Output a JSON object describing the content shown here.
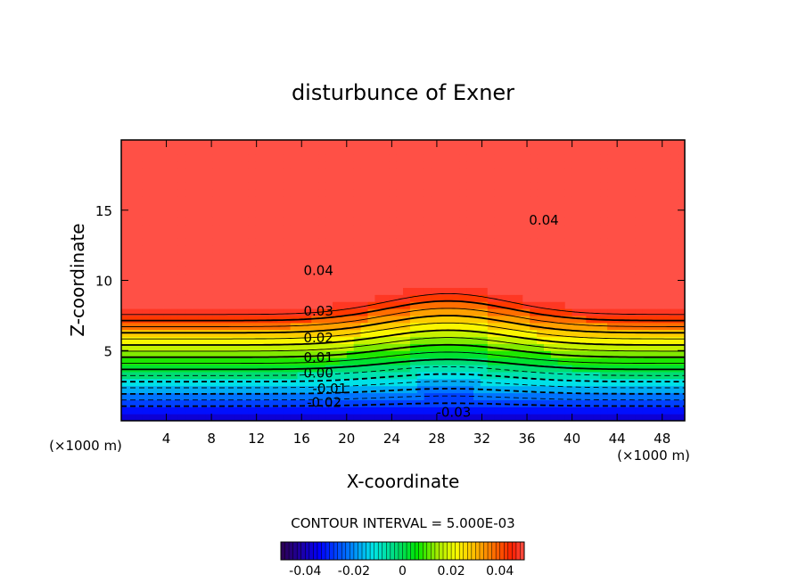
{
  "chart_data": {
    "type": "heatmap",
    "subtype": "filled-contour",
    "title": "disturbunce of Exner",
    "xlabel": "X-coordinate",
    "ylabel": "Z-coordinate",
    "x_unit": "(×1000 m)",
    "y_unit": "(×1000 m)",
    "xlim": [
      0,
      50
    ],
    "ylim": [
      0,
      20
    ],
    "x_ticks": [
      4,
      8,
      12,
      16,
      20,
      24,
      28,
      32,
      36,
      40,
      44,
      48
    ],
    "y_ticks": [
      5,
      10,
      15
    ],
    "contour_interval_text": "CONTOUR INTERVAL = 5.000E-03",
    "contour_interval": 0.005,
    "contour_levels": [
      -0.03,
      -0.025,
      -0.02,
      -0.015,
      -0.01,
      -0.005,
      0.0,
      0.005,
      0.01,
      0.015,
      0.02,
      0.025,
      0.03,
      0.035,
      0.04,
      0.045
    ],
    "negative_contours_dashed": true,
    "contour_labels": [
      {
        "text": "0.04",
        "x": 17.5,
        "z": 10.7
      },
      {
        "text": "0.04",
        "x": 37.5,
        "z": 14.3
      },
      {
        "text": "0.03",
        "x": 17.5,
        "z": 7.8
      },
      {
        "text": "0.02",
        "x": 17.5,
        "z": 5.9
      },
      {
        "text": "0.01",
        "x": 17.5,
        "z": 4.5
      },
      {
        "text": "0.00",
        "x": 17.5,
        "z": 3.4
      },
      {
        "text": "-0.01",
        "x": 18.5,
        "z": 2.3
      },
      {
        "text": "-0.02",
        "x": 18.0,
        "z": 1.3
      },
      {
        "text": "-0.03",
        "x": 29.5,
        "z": 0.6
      }
    ],
    "colorbar": {
      "min": -0.05,
      "max": 0.05,
      "ticks": [
        -0.04,
        -0.02,
        0,
        0.02,
        0.04
      ],
      "tick_labels": [
        "-0.04",
        "-0.02",
        "0",
        "0.02",
        "0.04"
      ]
    }
  }
}
